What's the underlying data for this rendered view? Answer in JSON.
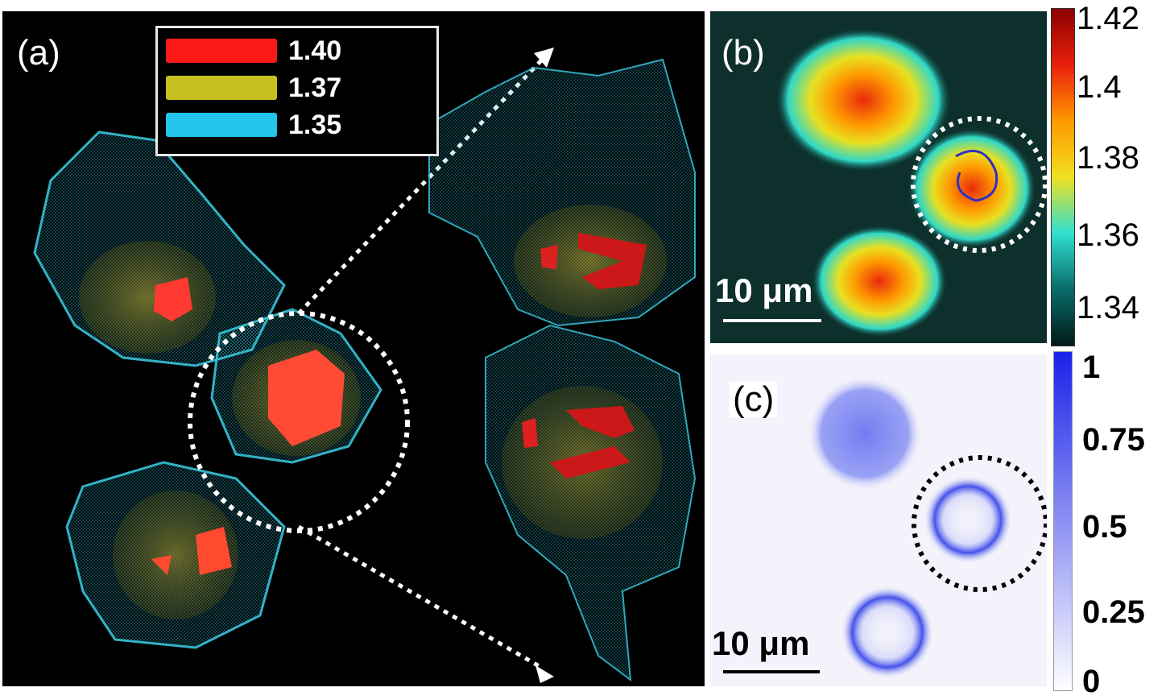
{
  "panel_a": {
    "label": "(a)",
    "legend": [
      {
        "value": "1.40",
        "color": "#ff1a1a"
      },
      {
        "value": "1.37",
        "color": "#c8c020"
      },
      {
        "value": "1.35",
        "color": "#22c6ea"
      }
    ]
  },
  "panel_b": {
    "label": "(b)",
    "scalebar": "10 μm",
    "colorbar": {
      "ticks": [
        "1.42",
        "1.4",
        "1.38",
        "1.36",
        "1.34"
      ],
      "colors": [
        "#8b0000",
        "#e8200c",
        "#ff9900",
        "#f0e020",
        "#2fe0d0",
        "#0a6a6a",
        "#021a18"
      ]
    }
  },
  "panel_c": {
    "label": "(c)",
    "scalebar": "10 μm",
    "colorbar": {
      "ticks": [
        "1",
        "0.75",
        "0.5",
        "0.25",
        "0"
      ],
      "colors": [
        "#1a22e8",
        "#ffffff"
      ]
    }
  }
}
